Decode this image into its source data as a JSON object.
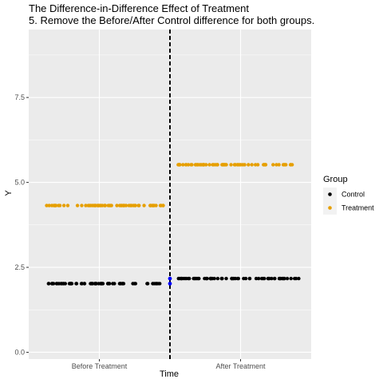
{
  "chart_data": {
    "type": "scatter",
    "title": "The Difference-in-Difference Effect of Treatment",
    "subtitle": "5. Remove the Before/After Control difference for both groups.",
    "xlabel": "Time",
    "ylabel": "Y",
    "categories": [
      "Before Treatment",
      "After Treatment"
    ],
    "yticks": [
      "0.0",
      "2.5",
      "5.0",
      "7.5"
    ],
    "ylim": [
      -0.2,
      9.5
    ],
    "xlim": [
      0,
      1
    ],
    "treatment_boundary": 0.5,
    "grid": true,
    "legend": {
      "title": "Group",
      "position": "right",
      "entries": [
        "Control",
        "Treatment"
      ]
    },
    "colors": {
      "Control": "#000000",
      "Treatment": "#E69F00",
      "marker": "#0000FF",
      "panel": "#EBEBEB",
      "grid": "#FFFFFF"
    },
    "series": [
      {
        "name": "Control",
        "segments": [
          {
            "xrange": [
              0.05,
              0.47
            ],
            "y": 2.02,
            "n": 64
          },
          {
            "xrange": [
              0.53,
              0.96
            ],
            "y": 2.17,
            "n": 68
          }
        ]
      },
      {
        "name": "Treatment",
        "segments": [
          {
            "xrange": [
              0.06,
              0.48
            ],
            "y": 4.32,
            "n": 66
          },
          {
            "xrange": [
              0.52,
              0.95
            ],
            "y": 5.52,
            "n": 64
          }
        ]
      }
    ],
    "highlight_points": [
      {
        "x": 0.5,
        "y": 2.02
      },
      {
        "x": 0.5,
        "y": 2.17
      }
    ]
  }
}
